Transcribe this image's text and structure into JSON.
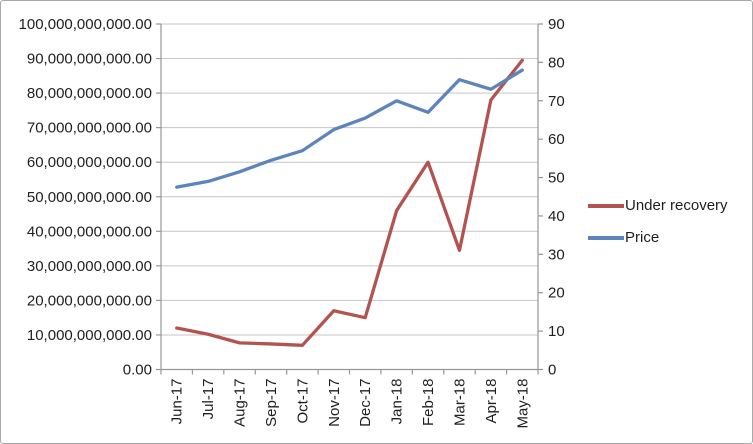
{
  "window": {
    "background": "#FFFFFF",
    "border_color": "#A9A9A9"
  },
  "chart_data": {
    "type": "line",
    "title": "",
    "categories": [
      "Jun-17",
      "Jul-17",
      "Aug-17",
      "Sep-17",
      "Oct-17",
      "Nov-17",
      "Dec-17",
      "Jan-18",
      "Feb-18",
      "Mar-18",
      "Apr-18",
      "May-18"
    ],
    "series": [
      {
        "name": "Under recovery",
        "axis": "left",
        "color": "#B35350",
        "values": [
          12000000000,
          10200000000,
          7700000000,
          7400000000,
          7000000000,
          17000000000,
          15000000000,
          46000000000,
          60000000000,
          34500000000,
          78000000000,
          89500000000
        ]
      },
      {
        "name": "Price",
        "axis": "right",
        "color": "#5C85BC",
        "values": [
          47.5,
          49,
          51.5,
          54.5,
          57,
          62.5,
          65.5,
          70,
          67,
          75.5,
          73,
          78
        ]
      }
    ],
    "left_axis": {
      "min": 0,
      "max": 100000000000,
      "step": 10000000000,
      "tick_labels": [
        "0.00",
        "10,000,000,000.00",
        "20,000,000,000.00",
        "30,000,000,000.00",
        "40,000,000,000.00",
        "50,000,000,000.00",
        "60,000,000,000.00",
        "70,000,000,000.00",
        "80,000,000,000.00",
        "90,000,000,000.00",
        "100,000,000,000.00"
      ]
    },
    "right_axis": {
      "min": 0,
      "max": 90,
      "step": 10,
      "tick_labels": [
        "0",
        "10",
        "20",
        "30",
        "40",
        "50",
        "60",
        "70",
        "80",
        "90"
      ]
    },
    "legend": {
      "position": "right",
      "items": [
        "Under recovery",
        "Price"
      ]
    },
    "grid": true,
    "styles": {
      "gridline_color": "#C6C6C6",
      "axis_color": "#969696",
      "label_color": "#1F1F1F"
    }
  }
}
